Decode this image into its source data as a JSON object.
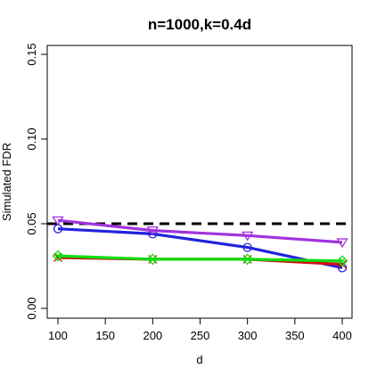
{
  "chart_data": {
    "type": "line",
    "title": "n=1000,k=0.4d",
    "xlabel": "d",
    "ylabel": "Simulated FDR",
    "x": [
      100,
      200,
      300,
      400
    ],
    "xlim": [
      100,
      400
    ],
    "ylim": [
      0,
      0.15
    ],
    "xticks": [
      100,
      150,
      200,
      250,
      300,
      350,
      400
    ],
    "xtick_labels": [
      "100",
      "150",
      "200",
      "250",
      "300",
      "350",
      "400"
    ],
    "yticks": [
      0,
      0.05,
      0.1,
      0.15
    ],
    "ytick_labels": [
      "0.00",
      "0.05",
      "0.10",
      "0.15"
    ],
    "reference_line": {
      "y": 0.05,
      "style": "dashed",
      "color": "#000000"
    },
    "grid": false,
    "legend": "none",
    "series": [
      {
        "color": "#2222dd",
        "marker": "circle",
        "values": [
          0.047,
          0.044,
          0.036,
          0.024
        ]
      },
      {
        "color": "#cc1111",
        "marker": "cross",
        "values": [
          0.03,
          0.029,
          0.029,
          0.026
        ]
      },
      {
        "color": "#11dd11",
        "marker": "diamond-x",
        "values": [
          0.031,
          0.029,
          0.029,
          0.028
        ]
      },
      {
        "color": "#a033dd",
        "marker": "triangle-down",
        "values": [
          0.052,
          0.046,
          0.043,
          0.039
        ]
      }
    ]
  }
}
